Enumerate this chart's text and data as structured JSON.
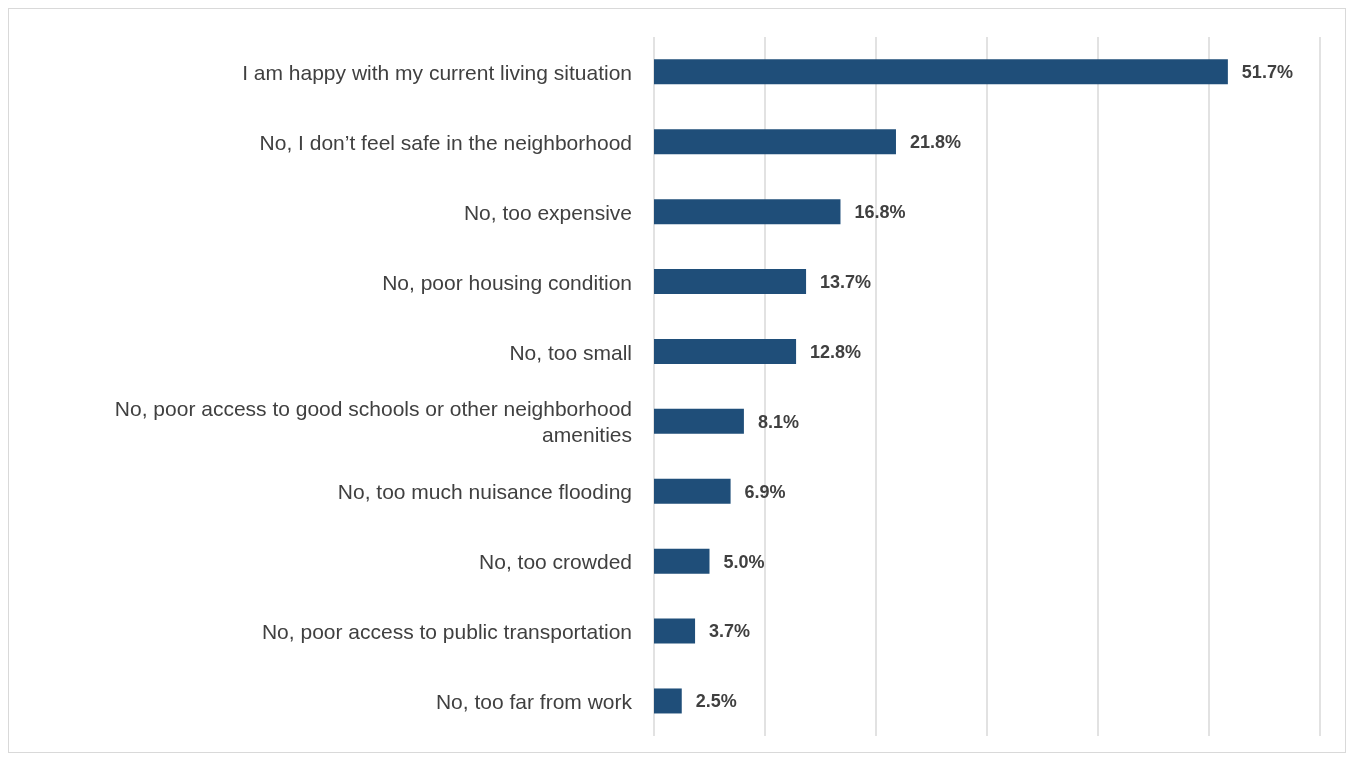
{
  "chart_data": {
    "type": "bar",
    "orientation": "horizontal",
    "categories": [
      "I am happy with my current living situation",
      "No, I don’t feel safe in the neighborhood",
      "No, too expensive",
      "No, poor housing condition",
      "No, too small",
      "No, poor access to good schools or other neighborhood amenities",
      "No, too much nuisance flooding",
      "No, too crowded",
      "No, poor access to public transportation",
      "No, too far from work"
    ],
    "values": [
      51.7,
      21.8,
      16.8,
      13.7,
      12.8,
      8.1,
      6.9,
      5.0,
      3.7,
      2.5
    ],
    "value_labels": [
      "51.7%",
      "21.8%",
      "16.8%",
      "13.7%",
      "12.8%",
      "8.1%",
      "6.9%",
      "5.0%",
      "3.7%",
      "2.5%"
    ],
    "color": "#1f4e79",
    "xlim": [
      0,
      60
    ],
    "tick_labels": "y",
    "grid": "x",
    "legend": false
  }
}
